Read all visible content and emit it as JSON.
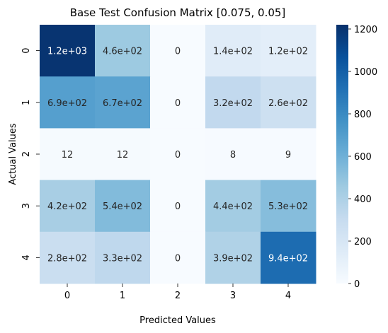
{
  "chart_data": {
    "type": "heatmap",
    "title": "Base Test Confusion Matrix [0.075, 0.05]",
    "xlabel": "Predicted Values",
    "ylabel": "Actual Values",
    "x_categories": [
      "0",
      "1",
      "2",
      "3",
      "4"
    ],
    "y_categories": [
      "0",
      "1",
      "2",
      "3",
      "4"
    ],
    "values": [
      [
        1200,
        460,
        0,
        140,
        120
      ],
      [
        690,
        670,
        0,
        320,
        260
      ],
      [
        12,
        12,
        0,
        8,
        9
      ],
      [
        420,
        540,
        0,
        440,
        530
      ],
      [
        280,
        330,
        0,
        390,
        940
      ]
    ],
    "annotations": [
      [
        "1.2e+03",
        "4.6e+02",
        "0",
        "1.4e+02",
        "1.2e+02"
      ],
      [
        "6.9e+02",
        "6.7e+02",
        "0",
        "3.2e+02",
        "2.6e+02"
      ],
      [
        "12",
        "12",
        "0",
        "8",
        "9"
      ],
      [
        "4.2e+02",
        "5.4e+02",
        "0",
        "4.4e+02",
        "5.3e+02"
      ],
      [
        "2.8e+02",
        "3.3e+02",
        "0",
        "3.9e+02",
        "9.4e+02"
      ]
    ],
    "colormap": "Blues",
    "colorbar": {
      "range": [
        0,
        1220
      ],
      "ticks": [
        0,
        200,
        400,
        600,
        800,
        1000,
        1200
      ],
      "tick_labels": [
        "0",
        "200",
        "400",
        "600",
        "800",
        "1000",
        "1200"
      ]
    },
    "grid": false
  }
}
